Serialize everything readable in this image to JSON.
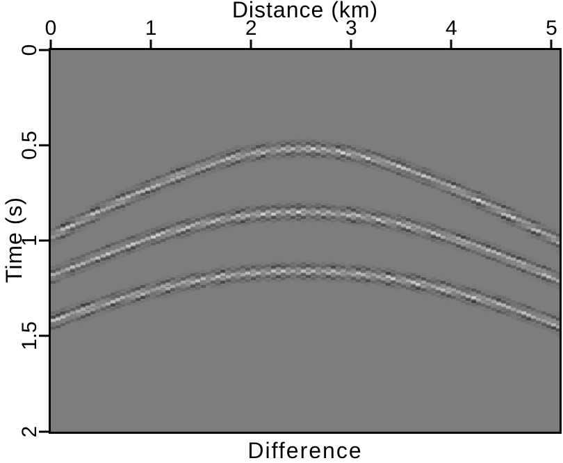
{
  "page": {
    "background_color": "#ffffff",
    "text_color": "#000000"
  },
  "chart_data": {
    "type": "heatmap",
    "subtype": "seismic-shot-gather-difference",
    "title": "Difference",
    "xlabel": "Distance (km)",
    "ylabel": "Time (s)",
    "xlim": [
      0,
      5.08
    ],
    "ylim": [
      0,
      2.0
    ],
    "x_tick_values": [
      0,
      1,
      2,
      3,
      4,
      5
    ],
    "x_tick_labels": [
      "0",
      "1",
      "2",
      "3",
      "4",
      "5"
    ],
    "y_tick_values": [
      0,
      0.5,
      1.0,
      1.5,
      2.0
    ],
    "y_tick_labels": [
      "0",
      "0.5",
      "1",
      "1.5",
      "2"
    ],
    "grid": false,
    "legend": "none",
    "background_value_color": "#7d7d7d",
    "frame_color": "#000000",
    "events": [
      {
        "name": "reflection-hyperbola-1",
        "apex_x_km": 2.5,
        "t0_s": 0.52,
        "velocity_km_s": 3.0
      },
      {
        "name": "reflection-hyperbola-2",
        "apex_x_km": 2.5,
        "t0_s": 0.85,
        "velocity_km_s": 3.0
      },
      {
        "name": "reflection-hyperbola-3",
        "apex_x_km": 2.5,
        "t0_s": 1.16,
        "velocity_km_s": 3.0
      }
    ],
    "trace_spacing_km": 0.05,
    "wavelet": {
      "type": "ricker",
      "sigma_s": 0.022,
      "sample_interval_s": 0.02,
      "amplitude": 72,
      "negative_lobe_gain": 1.55,
      "bright_color_max": "#c3c3c3",
      "dark_color_min": "#4b4b4b"
    }
  }
}
